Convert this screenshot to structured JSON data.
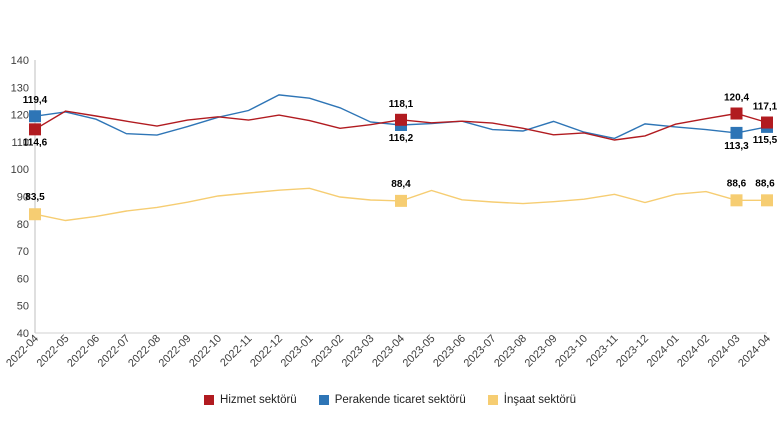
{
  "chart_data": {
    "type": "line",
    "x": [
      "2022-04",
      "2022-05",
      "2022-06",
      "2022-07",
      "2022-08",
      "2022-09",
      "2022-10",
      "2022-11",
      "2022-12",
      "2023-01",
      "2023-02",
      "2023-03",
      "2023-04",
      "2023-05",
      "2023-06",
      "2023-07",
      "2023-08",
      "2023-09",
      "2023-10",
      "2023-11",
      "2023-12",
      "2024-01",
      "2024-02",
      "2024-03",
      "2024-04"
    ],
    "ylim": [
      40,
      140
    ],
    "yticks": [
      40,
      50,
      60,
      70,
      80,
      90,
      100,
      110,
      120,
      130,
      140
    ],
    "series": [
      {
        "name": "Hizmet sektörü",
        "color": "#b11b20",
        "values": [
          114.6,
          121.3,
          119.5,
          117.6,
          115.8,
          118.0,
          119.2,
          118.0,
          119.8,
          117.8,
          115.0,
          116.3,
          118.1,
          117.0,
          117.6,
          116.9,
          115.0,
          112.6,
          113.3,
          110.7,
          112.2,
          116.5,
          118.5,
          120.4,
          117.1
        ],
        "labels": {
          "0": "114,6",
          "12": "118,1",
          "23": "120,4",
          "24": "117,1"
        }
      },
      {
        "name": "Perakende ticaret sektörü",
        "color": "#2e75b6",
        "values": [
          119.4,
          121.0,
          118.3,
          113.0,
          112.5,
          115.6,
          119.0,
          121.5,
          127.2,
          126.0,
          122.5,
          117.3,
          116.2,
          116.7,
          117.6,
          114.5,
          114.0,
          117.5,
          113.6,
          111.3,
          116.6,
          115.5,
          114.5,
          113.3,
          115.5
        ],
        "labels": {
          "0": "119,4",
          "12": "116,2",
          "23": "113,3",
          "24": "115,5"
        }
      },
      {
        "name": "İnşaat sektörü",
        "color": "#f6cd72",
        "values": [
          83.5,
          81.2,
          82.7,
          84.7,
          86.0,
          87.9,
          90.2,
          91.3,
          92.3,
          93.0,
          89.8,
          88.7,
          88.4,
          92.2,
          88.8,
          88.0,
          87.4,
          88.1,
          89.0,
          90.8,
          87.8,
          90.8,
          91.8,
          88.6,
          88.6
        ],
        "labels": {
          "0": "83,5",
          "12": "88,4",
          "23": "88,6",
          "24": "88,6"
        }
      }
    ]
  }
}
